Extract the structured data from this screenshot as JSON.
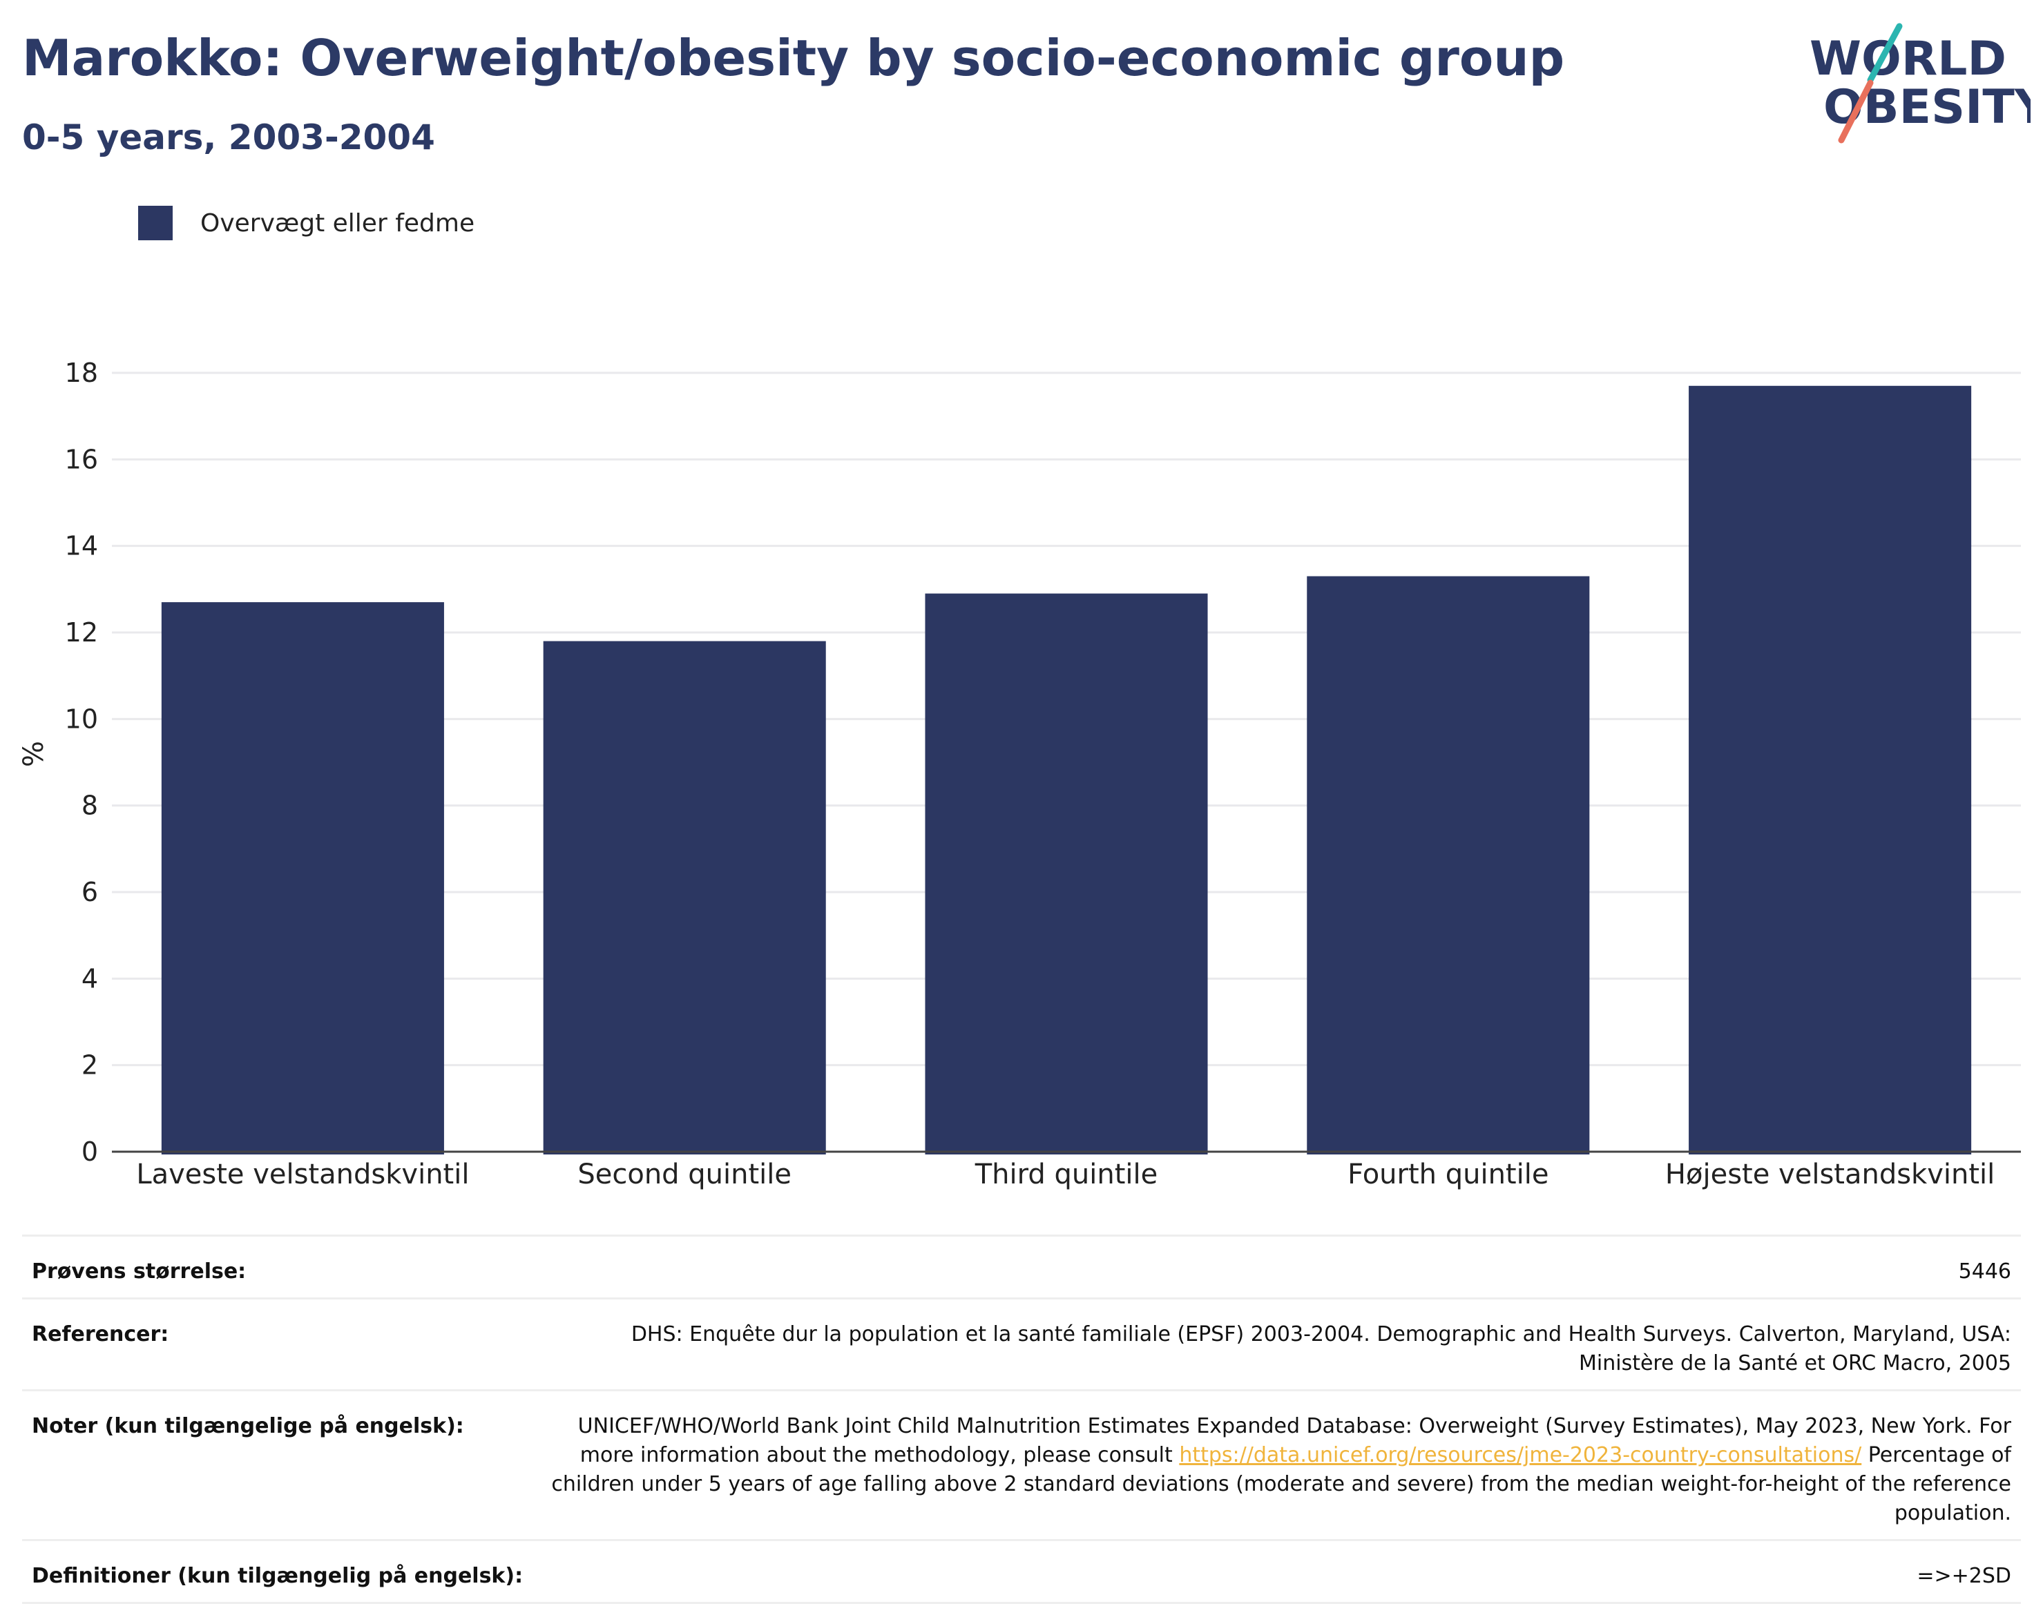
{
  "header": {
    "title": "Marokko: Overweight/obesity by socio-economic group",
    "subtitle": "0-5 years, 2003-2004"
  },
  "logo": {
    "line1": "WORLD",
    "line2": "OBESITY",
    "accent_teal": "#2bb5b0",
    "accent_coral": "#e8705c"
  },
  "legend": {
    "label": "Overvægt eller fedme",
    "color": "#2c3762"
  },
  "chart_data": {
    "type": "bar",
    "categories": [
      "Laveste velstandskvintil",
      "Second quintile",
      "Third quintile",
      "Fourth quintile",
      "Højeste velstandskvintil"
    ],
    "series": [
      {
        "name": "Overvægt eller fedme",
        "values": [
          12.7,
          11.8,
          12.9,
          13.3,
          17.7
        ],
        "color": "#2c3762"
      }
    ],
    "ylabel": "%",
    "ylim": [
      0,
      18
    ],
    "yticks": [
      0,
      2,
      4,
      6,
      8,
      10,
      12,
      14,
      16,
      18
    ],
    "grid": true,
    "legend_position": "top-left"
  },
  "info": {
    "sample_label": "Prøvens størrelse:",
    "sample_value": "5446",
    "references_label": "Referencer:",
    "references_value": "DHS: Enquête dur la population et la santé familiale (EPSF) 2003-2004. Demographic and Health Surveys. Calverton, Maryland, USA: Ministère de la Santé et ORC Macro, 2005",
    "notes_label": "Noter (kun tilgængelige på engelsk):",
    "notes_text1": "UNICEF/WHO/World Bank Joint Child Malnutrition Estimates Expanded Database: Overweight (Survey Estimates), May 2023, New York. For more information about the methodology, please consult ",
    "notes_link": "https://data.unicef.org/resources/jme-2023-country-consultations/",
    "notes_text2": " Percentage of children under 5 years of age falling above 2 standard deviations (moderate and severe) from the median weight-for-height of the reference population.",
    "definitions_label": "Definitioner (kun tilgængelig på engelsk):",
    "definitions_value": "=>+2SD"
  }
}
